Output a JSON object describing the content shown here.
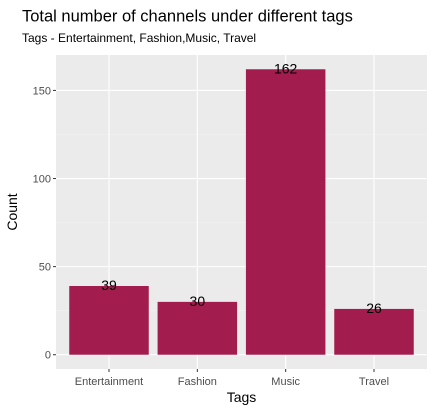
{
  "chart_data": {
    "type": "bar",
    "title": "Total number of channels under different tags",
    "subtitle": "Tags - Entertainment, Fashion,Music, Travel",
    "xlabel": "Tags",
    "ylabel": "Count",
    "categories": [
      "Entertainment",
      "Fashion",
      "Music",
      "Travel"
    ],
    "values": [
      39,
      30,
      162,
      26
    ],
    "data_labels": [
      "39",
      "30",
      "162",
      "26"
    ],
    "yticks": [
      0,
      50,
      100,
      150
    ],
    "ytick_labels": [
      "0",
      "50",
      "100",
      "150"
    ],
    "ylim": [
      -8.1,
      170.1
    ],
    "grid": true,
    "colors": {
      "bar": "#a31c4e",
      "panel": "#ebebeb"
    }
  }
}
